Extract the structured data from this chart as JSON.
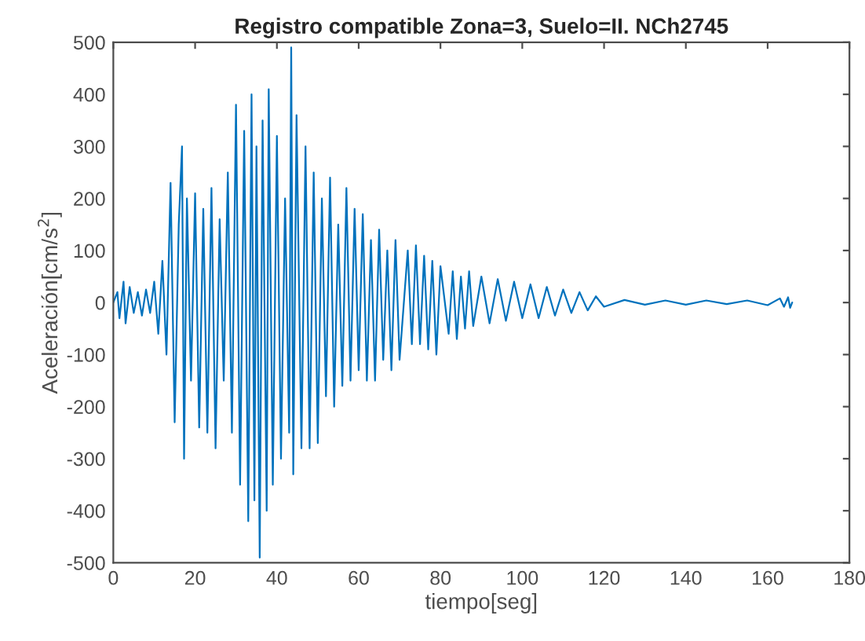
{
  "chart_data": {
    "type": "line",
    "title": "Registro compatible Zona=3, Suelo=II. NCh2745",
    "xlabel": "tiempo[seg]",
    "ylabel": "Aceleración[cm/s$^{2}$]",
    "x": [
      0,
      1,
      1.5,
      2.5,
      3,
      4,
      5,
      6,
      7,
      8,
      9,
      10,
      11,
      12,
      13,
      14,
      15,
      16,
      16.8,
      17.3,
      18,
      19,
      20,
      21,
      22,
      23,
      24,
      25,
      26,
      27,
      28,
      29,
      30,
      31,
      32,
      33,
      33.8,
      34.5,
      35,
      35.8,
      36.5,
      37.5,
      38,
      39,
      40,
      41,
      42,
      43,
      43.5,
      44,
      44.8,
      46,
      47,
      48,
      49,
      50,
      51,
      52,
      53,
      54,
      55,
      56,
      57,
      58,
      59,
      60,
      61,
      62,
      63,
      64,
      65,
      66,
      67,
      68,
      69,
      70,
      72,
      73,
      74,
      75,
      76,
      77,
      78,
      79,
      80,
      82,
      83,
      84,
      85,
      86,
      87,
      88,
      90,
      92,
      94,
      96,
      98,
      100,
      102,
      104,
      106,
      108,
      110,
      112,
      114,
      116,
      118,
      120,
      125,
      130,
      135,
      140,
      145,
      150,
      155,
      160,
      163,
      164,
      165,
      165.5,
      166
    ],
    "series": [
      {
        "color": "#0072bd",
        "values": [
          0,
          20,
          -30,
          40,
          -40,
          30,
          -20,
          20,
          -25,
          25,
          -20,
          40,
          -60,
          80,
          -100,
          230,
          -230,
          150,
          300,
          -300,
          200,
          -150,
          210,
          -240,
          180,
          -250,
          220,
          -280,
          160,
          -150,
          250,
          -250,
          380,
          -350,
          330,
          -420,
          400,
          -380,
          300,
          -490,
          350,
          -400,
          410,
          -350,
          320,
          -300,
          200,
          -250,
          490,
          -330,
          360,
          -280,
          300,
          -280,
          250,
          -270,
          200,
          -180,
          240,
          -200,
          150,
          -160,
          220,
          -150,
          180,
          -130,
          170,
          -150,
          120,
          -150,
          140,
          -110,
          100,
          -130,
          120,
          -110,
          100,
          -80,
          110,
          -80,
          90,
          -90,
          80,
          -100,
          70,
          -60,
          60,
          -70,
          50,
          -50,
          60,
          -45,
          50,
          -40,
          45,
          -35,
          40,
          -30,
          35,
          -30,
          30,
          -25,
          25,
          -20,
          20,
          -15,
          12,
          -8,
          5,
          -4,
          4,
          -4,
          4,
          -3,
          4,
          -5,
          8,
          -8,
          10,
          -10,
          0
        ]
      }
    ],
    "xlim": [
      0,
      180
    ],
    "xticks": [
      0,
      20,
      40,
      60,
      80,
      100,
      120,
      140,
      160,
      180
    ],
    "ylim": [
      -500,
      500
    ],
    "yticks": [
      -500,
      -400,
      -300,
      -200,
      -100,
      0,
      100,
      200,
      300,
      400,
      500
    ],
    "grid": false,
    "legend": false,
    "marker": "none",
    "line_style": "solid"
  }
}
